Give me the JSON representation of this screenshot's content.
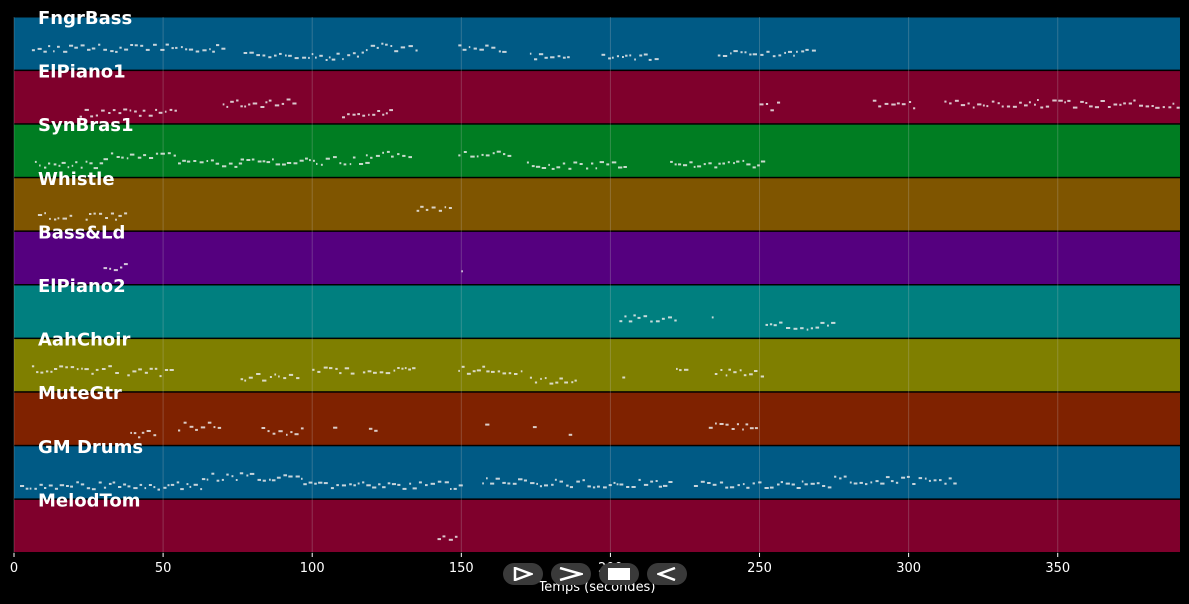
{
  "chart_data": {
    "type": "scatter",
    "subtype": "midi-piano-roll",
    "xlabel": "Temps (secondes)",
    "xlim": [
      0,
      391
    ],
    "xticks": [
      0,
      50,
      100,
      150,
      200,
      250,
      300,
      350
    ],
    "grid": true,
    "tracks": [
      {
        "name": "FngrBass",
        "color": "#005a85",
        "segments": [
          [
            6,
            70
          ],
          [
            77,
            118
          ],
          [
            118,
            135
          ],
          [
            149,
            164
          ],
          [
            173,
            186
          ],
          [
            197,
            217
          ],
          [
            236,
            268
          ]
        ]
      },
      {
        "name": "ElPiano1",
        "color": "#7f002c",
        "segments": [
          [
            22,
            54
          ],
          [
            70,
            94
          ],
          [
            110,
            127
          ],
          [
            250,
            256
          ],
          [
            288,
            303
          ],
          [
            312,
            391
          ]
        ]
      },
      {
        "name": "SynBras1",
        "color": "#007d22",
        "segments": [
          [
            7,
            30
          ],
          [
            30,
            55
          ],
          [
            55,
            76
          ],
          [
            76,
            118
          ],
          [
            118,
            133
          ],
          [
            149,
            166
          ],
          [
            172,
            206
          ],
          [
            220,
            252
          ]
        ]
      },
      {
        "name": "Whistle",
        "color": "#7f5500",
        "segments": [
          [
            8,
            20
          ],
          [
            24,
            37
          ],
          [
            135,
            147
          ]
        ]
      },
      {
        "name": "Bass&Ld",
        "color": "#55007f",
        "segments": [
          [
            30,
            38
          ],
          [
            150,
            151
          ]
        ]
      },
      {
        "name": "ElPiano2",
        "color": "#007f7f",
        "segments": [
          [
            203,
            222
          ],
          [
            234,
            235
          ],
          [
            252,
            275
          ]
        ]
      },
      {
        "name": "AahChoir",
        "color": "#7f7f00",
        "segments": [
          [
            6,
            35
          ],
          [
            38,
            54
          ],
          [
            76,
            95
          ],
          [
            100,
            113
          ],
          [
            117,
            135
          ],
          [
            149,
            170
          ],
          [
            173,
            188
          ],
          [
            204,
            205
          ],
          [
            222,
            227
          ],
          [
            235,
            252
          ]
        ]
      },
      {
        "name": "MuteGtr",
        "color": "#7f2200",
        "segments": [
          [
            39,
            48
          ],
          [
            55,
            69
          ],
          [
            83,
            97
          ],
          [
            107,
            108
          ],
          [
            119,
            123
          ],
          [
            158,
            159
          ],
          [
            174,
            175
          ],
          [
            186,
            187
          ],
          [
            233,
            249
          ]
        ]
      },
      {
        "name": "GM Drums",
        "color": "#005a85",
        "segments": [
          [
            2,
            63
          ],
          [
            63,
            97
          ],
          [
            97,
            150
          ],
          [
            157,
            170
          ],
          [
            171,
            221
          ],
          [
            228,
            275
          ],
          [
            275,
            316
          ]
        ]
      },
      {
        "name": "MelodTom",
        "color": "#7f002c",
        "segments": [
          [
            142,
            149
          ]
        ]
      }
    ]
  },
  "controls": {
    "buttons": [
      "play",
      "fast-forward",
      "stop",
      "rewind"
    ]
  }
}
